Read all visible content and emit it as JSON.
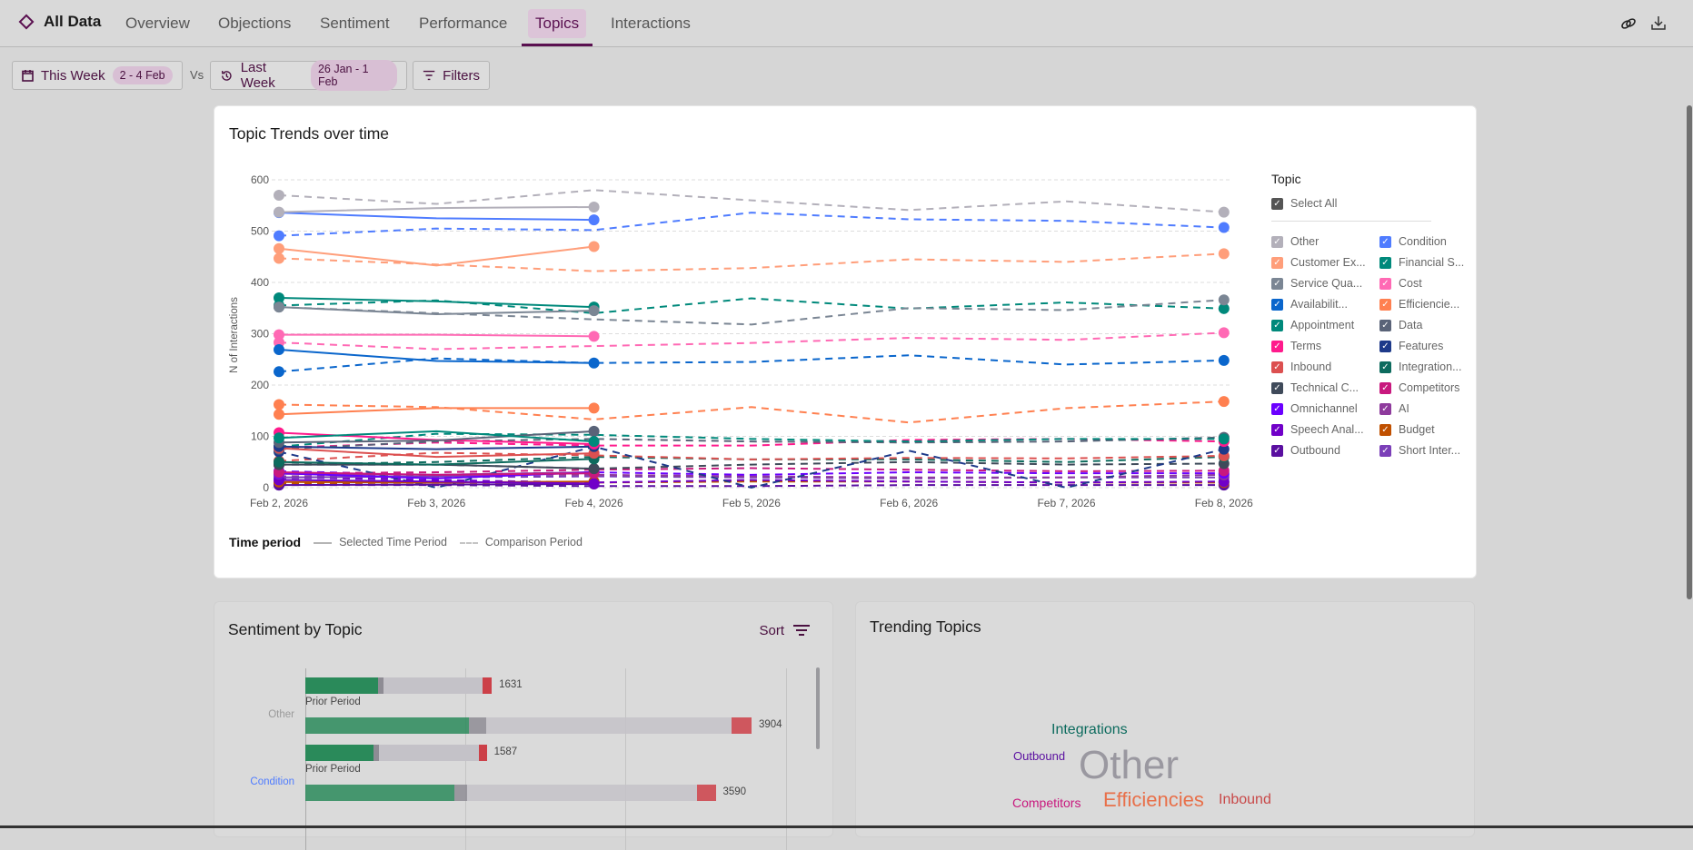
{
  "nav": {
    "brand": "All Data",
    "tabs": [
      {
        "label": "Overview"
      },
      {
        "label": "Objections"
      },
      {
        "label": "Sentiment"
      },
      {
        "label": "Performance"
      },
      {
        "label": "Topics",
        "active": true
      },
      {
        "label": "Interactions"
      }
    ],
    "icons": [
      "link-icon",
      "download-icon"
    ]
  },
  "filters": {
    "this_week": "This Week",
    "this_range": "2 - 4 Feb",
    "vs": "Vs",
    "last_week": "Last Week",
    "last_range": "26 Jan - 1 Feb",
    "filters": "Filters"
  },
  "colors": {
    "accent": "#5a1050",
    "positive": "#2a8a5a",
    "neutral": "#8e8c94",
    "mixed": "#c4c2c8",
    "negative": "#cc4048"
  },
  "trend": {
    "title": "Topic Trends over time",
    "legend_title": "Topic",
    "select_all": "Select All",
    "time_period": {
      "label": "Time period",
      "selected": "Selected Time Period",
      "comparison": "Comparison Period"
    }
  },
  "chart_data": {
    "type": "line",
    "title": "Topic Trends over time",
    "ylabel": "N of Interactions",
    "xlabel": "",
    "ylim": [
      0,
      600
    ],
    "yticks": [
      "0",
      "100",
      "200",
      "300",
      "400",
      "500",
      "600"
    ],
    "x": [
      "Feb 2, 2026",
      "Feb 3, 2026",
      "Feb 4, 2026",
      "Feb 5, 2026",
      "Feb 6, 2026",
      "Feb 7, 2026",
      "Feb 8, 2026"
    ],
    "grid": true,
    "legend": "right",
    "series": [
      {
        "name": "Other",
        "color": "#b3b0ba",
        "selected": [
          537,
          545,
          547
        ],
        "comparison": [
          570,
          553,
          580,
          560,
          541,
          558,
          537
        ]
      },
      {
        "name": "Condition",
        "color": "#4f7cff",
        "selected": [
          536,
          525,
          522
        ],
        "comparison": [
          491,
          505,
          502,
          536,
          523,
          520,
          507
        ]
      },
      {
        "name": "Customer Ex...",
        "color": "#ff9e7a",
        "selected": [
          466,
          433,
          470
        ],
        "comparison": [
          447,
          435,
          422,
          428,
          445,
          440,
          456
        ]
      },
      {
        "name": "Financial S...",
        "color": "#00897b",
        "selected": [
          97,
          110,
          90
        ],
        "comparison": [
          80,
          105,
          103,
          95,
          90,
          95,
          95
        ]
      },
      {
        "name": "Service Qua...",
        "color": "#7b8694",
        "selected": [
          352,
          338,
          345
        ],
        "comparison": [
          352,
          340,
          328,
          318,
          350,
          346,
          366
        ]
      },
      {
        "name": "Cost",
        "color": "#ff69b4",
        "selected": [
          298,
          298,
          295
        ],
        "comparison": [
          283,
          270,
          276,
          282,
          292,
          288,
          302
        ]
      },
      {
        "name": "Availabilit...",
        "color": "#0a66cc",
        "selected": [
          269,
          247,
          243
        ],
        "comparison": [
          226,
          252,
          243,
          245,
          258,
          240,
          248
        ]
      },
      {
        "name": "Efficiencie...",
        "color": "#ff8050",
        "selected": [
          143,
          155,
          155
        ],
        "comparison": [
          162,
          157,
          133,
          157,
          127,
          155,
          168
        ]
      },
      {
        "name": "Appointment",
        "color": "#00897b",
        "selected": [
          370,
          363,
          352
        ],
        "comparison": [
          355,
          365,
          340,
          369,
          349,
          361,
          349
        ]
      },
      {
        "name": "Data",
        "color": "#5a6378",
        "selected": [
          88,
          92,
          110
        ],
        "comparison": [
          75,
          90,
          95,
          90,
          88,
          90,
          98
        ]
      },
      {
        "name": "Terms",
        "color": "#ff1a8c",
        "selected": [
          107,
          93,
          85
        ],
        "comparison": [
          78,
          88,
          82,
          82,
          93,
          95,
          90
        ]
      },
      {
        "name": "Features",
        "color": "#1e3a8a",
        "selected": [
          80,
          75,
          80
        ],
        "comparison": [
          70,
          0,
          80,
          0,
          72,
          0,
          75
        ]
      },
      {
        "name": "Inbound",
        "color": "#dc5050",
        "selected": [
          77,
          60,
          67
        ],
        "comparison": [
          52,
          68,
          63,
          55,
          58,
          57,
          62
        ]
      },
      {
        "name": "Integration...",
        "color": "#0d6b5e",
        "selected": [
          50,
          45,
          56
        ],
        "comparison": [
          45,
          50,
          60,
          55,
          55,
          50,
          60
        ]
      },
      {
        "name": "Technical C...",
        "color": "#3f4a5a",
        "selected": [
          45,
          45,
          37
        ],
        "comparison": [
          45,
          45,
          37,
          45,
          50,
          45,
          47
        ]
      },
      {
        "name": "Competitors",
        "color": "#c8187e",
        "selected": [
          30,
          25,
          28
        ],
        "comparison": [
          28,
          30,
          35,
          38,
          35,
          32,
          33
        ]
      },
      {
        "name": "Omnichannel",
        "color": "#6b00ff",
        "selected": [
          28,
          18,
          30
        ],
        "comparison": [
          32,
          25,
          30,
          25,
          30,
          28,
          28
        ]
      },
      {
        "name": "AI",
        "color": "#8e3a9c",
        "selected": [
          27,
          25,
          30
        ],
        "comparison": [
          22,
          25,
          25,
          22,
          20,
          20,
          25
        ]
      },
      {
        "name": "Speech Anal...",
        "color": "#7000c8",
        "selected": [
          15,
          12,
          8
        ],
        "comparison": [
          20,
          15,
          10,
          15,
          12,
          10,
          12
        ]
      },
      {
        "name": "Budget",
        "color": "#c05000",
        "selected": [
          11,
          10,
          12
        ],
        "comparison": [
          8,
          10,
          10,
          12,
          12,
          10,
          10
        ]
      },
      {
        "name": "Outbound",
        "color": "#5a0fa0",
        "selected": [
          5,
          6,
          7
        ],
        "comparison": [
          5,
          5,
          3,
          3,
          5,
          5,
          5
        ]
      },
      {
        "name": "Short Inter...",
        "color": "#7b3fb8",
        "selected": [
          20,
          22,
          30
        ],
        "comparison": [
          18,
          20,
          22,
          20,
          18,
          20,
          20
        ]
      }
    ]
  },
  "sentiment": {
    "title": "Sentiment by Topic",
    "sort": "Sort",
    "prior_label": "Prior Period",
    "rows": [
      {
        "topic": "Other",
        "color": "#9a9a9a",
        "current": {
          "total": "1631",
          "value": 1631,
          "shares": [
            0.39,
            0.03,
            0.53,
            0.05
          ]
        },
        "prior": {
          "total": "3904",
          "value": 3904,
          "shares": [
            0.366,
            0.04,
            0.55,
            0.044
          ]
        }
      },
      {
        "topic": "Condition",
        "color": "#4f7cff",
        "current": {
          "total": "1587",
          "value": 1587,
          "shares": [
            0.375,
            0.03,
            0.55,
            0.045
          ]
        },
        "prior": {
          "total": "3590",
          "value": 3590,
          "shares": [
            0.364,
            0.03,
            0.56,
            0.046
          ]
        }
      }
    ]
  },
  "trending": {
    "title": "Trending Topics",
    "words": [
      {
        "text": "Integrations",
        "color": "#0d6b5e"
      },
      {
        "text": "Outbound",
        "color": "#5a0fa0"
      },
      {
        "text": "Other",
        "color": "#9a98a0"
      },
      {
        "text": "Competitors",
        "color": "#c8187e"
      },
      {
        "text": "Efficiencies",
        "color": "#e8704a"
      },
      {
        "text": "Inbound",
        "color": "#c84848"
      }
    ]
  }
}
